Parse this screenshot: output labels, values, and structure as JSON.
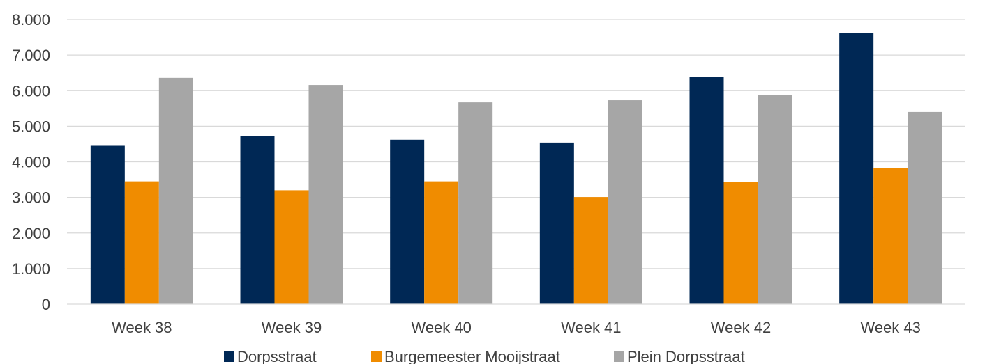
{
  "chart_data": {
    "type": "bar",
    "categories": [
      "Week 38",
      "Week 39",
      "Week 40",
      "Week 41",
      "Week 42",
      "Week 43"
    ],
    "series": [
      {
        "name": "Dorpsstraat",
        "color": "#002855",
        "values": [
          4450,
          4720,
          4620,
          4540,
          6380,
          7620
        ]
      },
      {
        "name": "Burgemeester Mooijstraat",
        "color": "#F08C00",
        "values": [
          3450,
          3200,
          3450,
          3010,
          3430,
          3820
        ]
      },
      {
        "name": "Plein Dorpsstraat",
        "color": "#A6A6A6",
        "values": [
          6360,
          6160,
          5670,
          5730,
          5870,
          5400
        ]
      }
    ],
    "yticks": [
      "0",
      "1.000",
      "2.000",
      "3.000",
      "4.000",
      "5.000",
      "6.000",
      "7.000",
      "8.000"
    ],
    "ylim": [
      0,
      8000
    ],
    "grid": true,
    "legend_position": "bottom",
    "title": "",
    "xlabel": "",
    "ylabel": ""
  }
}
